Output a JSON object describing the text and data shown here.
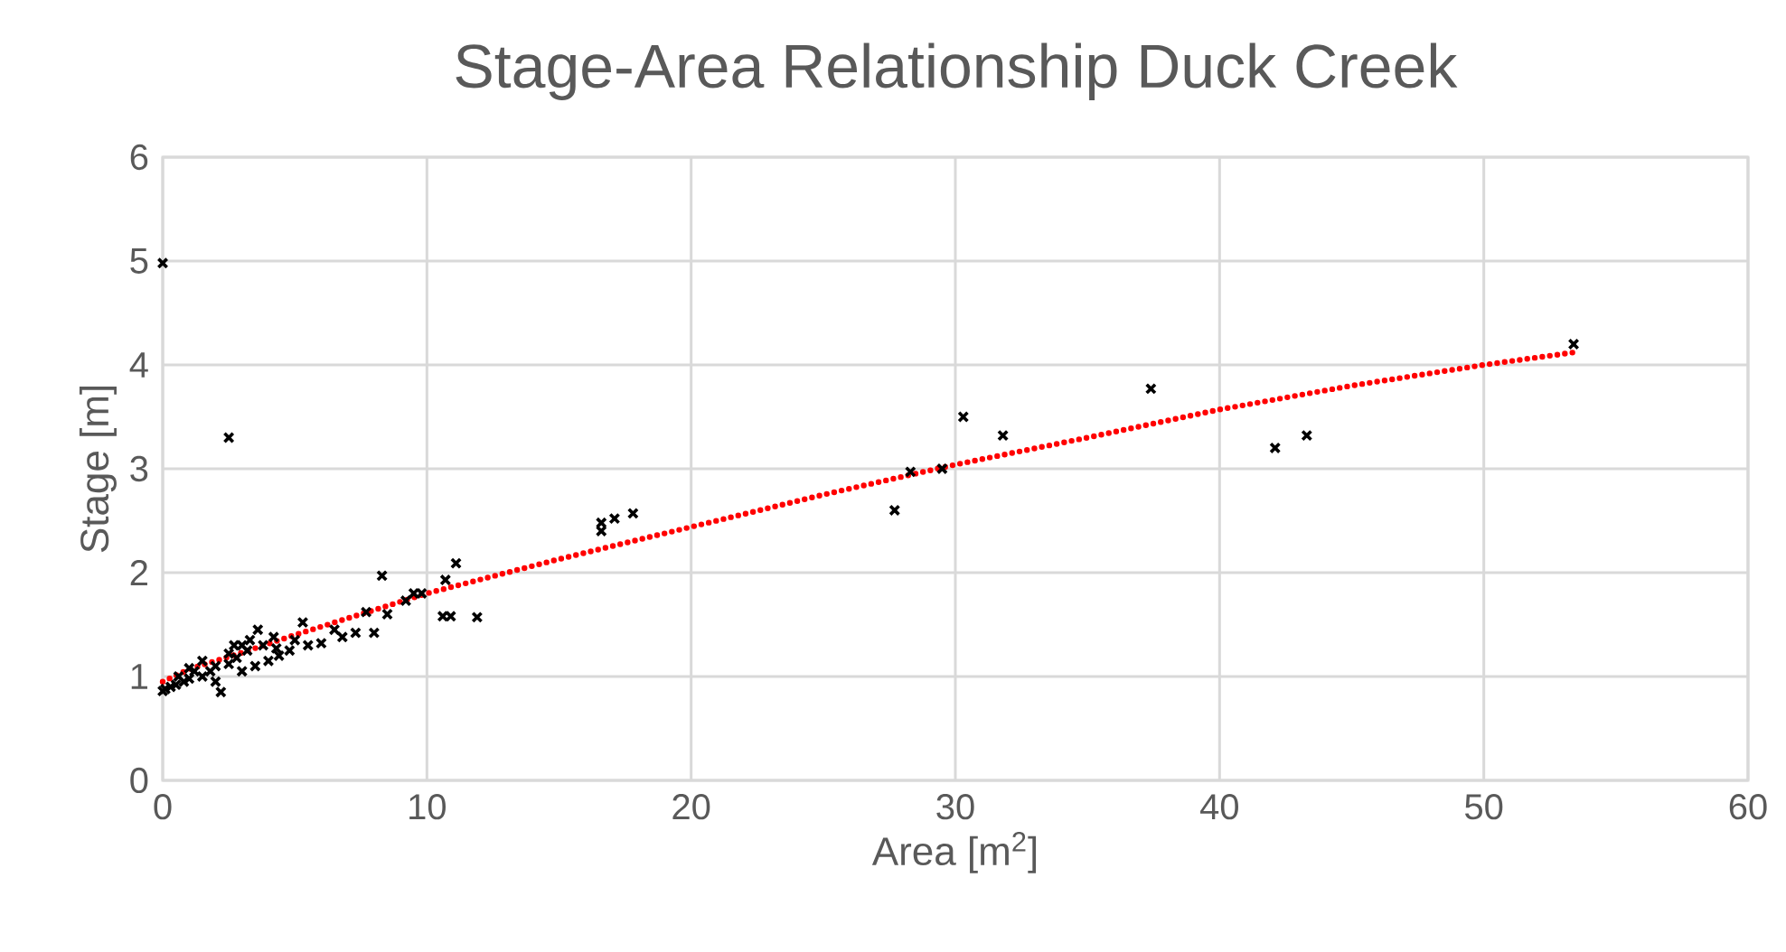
{
  "chart_data": {
    "type": "scatter",
    "title": "Stage-Area Relationship Duck Creek",
    "xlabel": "Area [m$^{2}$]",
    "ylabel": "Stage [m]",
    "xlim": [
      0,
      60
    ],
    "ylim": [
      0,
      6
    ],
    "xticks": [
      0,
      10,
      20,
      30,
      40,
      50,
      60
    ],
    "yticks": [
      0,
      1,
      2,
      3,
      4,
      5,
      6
    ],
    "grid": true,
    "marker": "cross",
    "series": [
      {
        "color": "#000000",
        "x": [
          0,
          2.5,
          53.4,
          43.3,
          42.1,
          37.4,
          31.8,
          30.3,
          29.5,
          28.3,
          27.7,
          17.8,
          17.1,
          16.6,
          16.6,
          11.9,
          11.1,
          10.9,
          10.7,
          10.6,
          9.8,
          9.5,
          9.2,
          8.5,
          8.3,
          8.0,
          7.7,
          7.3,
          6.8,
          6.5,
          6.0,
          5.5,
          5.0,
          4.8,
          4.4,
          4.3,
          3.8,
          3.6,
          3.3,
          3.0,
          2.8,
          2.5,
          2.2,
          2.0,
          1.8,
          1.5,
          1.2,
          1.0,
          0.8,
          0.5,
          0.3,
          0.1,
          0.0,
          1.5,
          2.5,
          3.5,
          4.2,
          5.3,
          2.0,
          1.0,
          3.0,
          4.0,
          3.2,
          2.7,
          0.6
        ],
        "values": [
          4.98,
          3.3,
          4.2,
          3.32,
          3.2,
          3.77,
          3.32,
          3.5,
          3.0,
          2.97,
          2.6,
          2.57,
          2.52,
          2.48,
          2.4,
          1.57,
          2.09,
          1.58,
          1.93,
          1.58,
          1.8,
          1.8,
          1.73,
          1.6,
          1.97,
          1.42,
          1.62,
          1.42,
          1.38,
          1.45,
          1.32,
          1.3,
          1.35,
          1.25,
          1.2,
          1.27,
          1.3,
          1.45,
          1.35,
          1.3,
          1.18,
          1.12,
          0.85,
          1.1,
          1.05,
          1.0,
          1.05,
          0.98,
          0.95,
          0.92,
          0.9,
          0.88,
          0.86,
          1.15,
          1.22,
          1.1,
          1.38,
          1.52,
          0.95,
          1.08,
          1.05,
          1.15,
          1.25,
          1.3,
          1.0
        ]
      },
      {
        "type": "line",
        "color": "#ff0000",
        "line_style": "dotted",
        "marker": "none",
        "x": [
          0,
          1,
          2,
          3,
          5,
          7.5,
          10,
          15,
          20,
          25,
          30,
          35,
          40,
          45,
          50,
          53.4
        ],
        "values": [
          0.95,
          1.07,
          1.15,
          1.23,
          1.4,
          1.6,
          1.8,
          2.13,
          2.44,
          2.75,
          3.04,
          3.3,
          3.57,
          3.8,
          4.0,
          4.12
        ]
      }
    ]
  }
}
